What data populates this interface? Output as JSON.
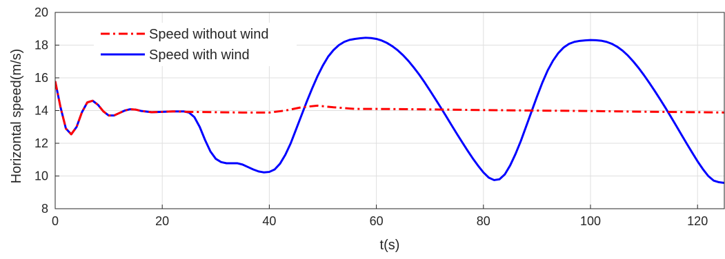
{
  "chart_data": {
    "type": "line",
    "title": "",
    "xlabel": "t(s)",
    "ylabel": "Horizontal speed(m/s)",
    "xlim": [
      0,
      125
    ],
    "ylim": [
      8,
      20
    ],
    "x_ticks": [
      0,
      20,
      40,
      60,
      80,
      100,
      120
    ],
    "y_ticks": [
      8,
      10,
      12,
      14,
      16,
      18,
      20
    ],
    "x_tick_labels": [
      "0",
      "20",
      "40",
      "60",
      "80",
      "100",
      "120"
    ],
    "y_tick_labels": [
      "8",
      "10",
      "12",
      "14",
      "16",
      "18",
      "20"
    ],
    "grid": true,
    "legend_position": "top-left",
    "series": [
      {
        "name": "Speed without wind",
        "color": "#ff0000",
        "style": "dash-dot",
        "points": [
          [
            0,
            15.8
          ],
          [
            1,
            14.2
          ],
          [
            2,
            12.9
          ],
          [
            3,
            12.55
          ],
          [
            4,
            13.0
          ],
          [
            5,
            13.9
          ],
          [
            6,
            14.5
          ],
          [
            7,
            14.6
          ],
          [
            8,
            14.35
          ],
          [
            9,
            13.95
          ],
          [
            10,
            13.7
          ],
          [
            11,
            13.7
          ],
          [
            12,
            13.85
          ],
          [
            13,
            14.0
          ],
          [
            14,
            14.08
          ],
          [
            15,
            14.06
          ],
          [
            16,
            13.98
          ],
          [
            18,
            13.9
          ],
          [
            20,
            13.92
          ],
          [
            22,
            13.95
          ],
          [
            25,
            13.92
          ],
          [
            30,
            13.9
          ],
          [
            35,
            13.88
          ],
          [
            40,
            13.88
          ],
          [
            43,
            14.0
          ],
          [
            46,
            14.2
          ],
          [
            49,
            14.3
          ],
          [
            52,
            14.2
          ],
          [
            56,
            14.1
          ],
          [
            60,
            14.1
          ],
          [
            70,
            14.07
          ],
          [
            80,
            14.03
          ],
          [
            90,
            14.0
          ],
          [
            100,
            13.97
          ],
          [
            110,
            13.93
          ],
          [
            120,
            13.9
          ],
          [
            125,
            13.88
          ]
        ]
      },
      {
        "name": "Speed with wind",
        "color": "#0000ff",
        "style": "solid",
        "points": [
          [
            0,
            15.8
          ],
          [
            1,
            14.2
          ],
          [
            2,
            12.9
          ],
          [
            3,
            12.55
          ],
          [
            4,
            13.0
          ],
          [
            5,
            13.9
          ],
          [
            6,
            14.5
          ],
          [
            7,
            14.6
          ],
          [
            8,
            14.35
          ],
          [
            9,
            13.95
          ],
          [
            10,
            13.7
          ],
          [
            11,
            13.7
          ],
          [
            12,
            13.85
          ],
          [
            13,
            14.0
          ],
          [
            14,
            14.08
          ],
          [
            15,
            14.06
          ],
          [
            16,
            13.98
          ],
          [
            18,
            13.9
          ],
          [
            20,
            13.92
          ],
          [
            22,
            13.95
          ],
          [
            24,
            13.95
          ],
          [
            25,
            13.88
          ],
          [
            26,
            13.6
          ],
          [
            27,
            13.0
          ],
          [
            28,
            12.2
          ],
          [
            29,
            11.5
          ],
          [
            30,
            11.05
          ],
          [
            31,
            10.85
          ],
          [
            32,
            10.78
          ],
          [
            34,
            10.78
          ],
          [
            35,
            10.7
          ],
          [
            36,
            10.55
          ],
          [
            37,
            10.4
          ],
          [
            38,
            10.28
          ],
          [
            39,
            10.22
          ],
          [
            40,
            10.25
          ],
          [
            41,
            10.4
          ],
          [
            42,
            10.75
          ],
          [
            43,
            11.3
          ],
          [
            44,
            12.0
          ],
          [
            45,
            12.85
          ],
          [
            46,
            13.7
          ],
          [
            47,
            14.55
          ],
          [
            48,
            15.35
          ],
          [
            49,
            16.1
          ],
          [
            50,
            16.75
          ],
          [
            51,
            17.3
          ],
          [
            52,
            17.7
          ],
          [
            53,
            18.0
          ],
          [
            54,
            18.2
          ],
          [
            55,
            18.32
          ],
          [
            56,
            18.38
          ],
          [
            57,
            18.42
          ],
          [
            58,
            18.45
          ],
          [
            59,
            18.43
          ],
          [
            60,
            18.38
          ],
          [
            61,
            18.28
          ],
          [
            62,
            18.13
          ],
          [
            63,
            17.93
          ],
          [
            64,
            17.68
          ],
          [
            65,
            17.38
          ],
          [
            66,
            17.03
          ],
          [
            67,
            16.63
          ],
          [
            68,
            16.2
          ],
          [
            69,
            15.73
          ],
          [
            70,
            15.23
          ],
          [
            71,
            14.72
          ],
          [
            72,
            14.2
          ],
          [
            73,
            13.67
          ],
          [
            74,
            13.13
          ],
          [
            75,
            12.6
          ],
          [
            76,
            12.08
          ],
          [
            77,
            11.57
          ],
          [
            78,
            11.08
          ],
          [
            79,
            10.63
          ],
          [
            80,
            10.22
          ],
          [
            81,
            9.9
          ],
          [
            82,
            9.75
          ],
          [
            83,
            9.8
          ],
          [
            84,
            10.1
          ],
          [
            85,
            10.65
          ],
          [
            86,
            11.35
          ],
          [
            87,
            12.15
          ],
          [
            88,
            13.05
          ],
          [
            89,
            13.95
          ],
          [
            90,
            14.85
          ],
          [
            91,
            15.7
          ],
          [
            92,
            16.45
          ],
          [
            93,
            17.05
          ],
          [
            94,
            17.52
          ],
          [
            95,
            17.86
          ],
          [
            96,
            18.08
          ],
          [
            97,
            18.2
          ],
          [
            98,
            18.26
          ],
          [
            99,
            18.29
          ],
          [
            100,
            18.31
          ],
          [
            101,
            18.3
          ],
          [
            102,
            18.27
          ],
          [
            103,
            18.2
          ],
          [
            104,
            18.08
          ],
          [
            105,
            17.9
          ],
          [
            106,
            17.66
          ],
          [
            107,
            17.36
          ],
          [
            108,
            17.0
          ],
          [
            109,
            16.6
          ],
          [
            110,
            16.16
          ],
          [
            111,
            15.69
          ],
          [
            112,
            15.2
          ],
          [
            113,
            14.69
          ],
          [
            114,
            14.17
          ],
          [
            115,
            13.63
          ],
          [
            116,
            13.08
          ],
          [
            117,
            12.52
          ],
          [
            118,
            11.97
          ],
          [
            119,
            11.43
          ],
          [
            120,
            10.9
          ],
          [
            121,
            10.42
          ],
          [
            122,
            10.0
          ],
          [
            123,
            9.72
          ],
          [
            124,
            9.62
          ],
          [
            125,
            9.58
          ]
        ]
      }
    ]
  }
}
